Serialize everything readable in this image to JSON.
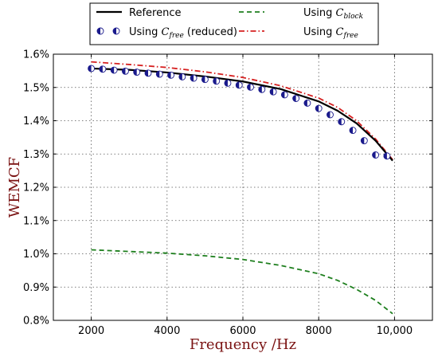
{
  "chart_data": {
    "type": "line",
    "xlabel": "Frequency /Hz",
    "ylabel": "WEMCF",
    "xlim": [
      1000,
      11000
    ],
    "ylim": [
      0.8,
      1.6
    ],
    "x_ticks": [
      2000,
      4000,
      6000,
      8000,
      10000
    ],
    "x_tick_labels": [
      "2000",
      "4000",
      "6000",
      "8000",
      "10,000"
    ],
    "y_ticks": [
      0.8,
      0.9,
      1.0,
      1.1,
      1.2,
      1.3,
      1.4,
      1.5,
      1.6
    ],
    "y_tick_labels": [
      "0.8%",
      "0.9%",
      "1.0%",
      "1.1%",
      "1.2%",
      "1.3%",
      "1.4%",
      "1.5%",
      "1.6%"
    ],
    "grid": true,
    "legend_position": "top (above plot, two columns)",
    "series": [
      {
        "name": "Reference",
        "style": "solid",
        "color": "#000000",
        "x": [
          2000,
          3000,
          4000,
          5000,
          6000,
          7000,
          8000,
          8500,
          9000,
          9500,
          9950
        ],
        "y": [
          1.557,
          1.553,
          1.545,
          1.533,
          1.518,
          1.495,
          1.458,
          1.43,
          1.392,
          1.34,
          1.28
        ]
      },
      {
        "name": "Using C_block",
        "name_text": "Using ",
        "name_math": "C",
        "name_sub": "block",
        "style": "dashed",
        "color": "#1e7f1e",
        "x": [
          2000,
          3000,
          4000,
          5000,
          6000,
          7000,
          8000,
          8500,
          9000,
          9500,
          9950
        ],
        "y": [
          1.012,
          1.007,
          1.002,
          0.994,
          0.983,
          0.965,
          0.94,
          0.92,
          0.893,
          0.86,
          0.82
        ]
      },
      {
        "name": "Using C_free (reduced)",
        "name_text": "Using ",
        "name_math": "C",
        "name_sub": "free",
        "name_suffix": " (reduced)",
        "style": "half-filled-circles",
        "color": "#1a1a8c",
        "x": [
          2000,
          2300,
          2600,
          2900,
          3200,
          3500,
          3800,
          4100,
          4400,
          4700,
          5000,
          5300,
          5600,
          5900,
          6200,
          6500,
          6800,
          7100,
          7400,
          7700,
          8000,
          8300,
          8600,
          8900,
          9200,
          9500,
          9800
        ],
        "y": [
          1.557,
          1.555,
          1.552,
          1.549,
          1.546,
          1.543,
          1.54,
          1.537,
          1.532,
          1.528,
          1.524,
          1.519,
          1.513,
          1.507,
          1.501,
          1.494,
          1.487,
          1.478,
          1.467,
          1.453,
          1.437,
          1.418,
          1.397,
          1.371,
          1.34,
          1.297,
          1.294
        ]
      },
      {
        "name": "Using C_free",
        "name_text": "Using ",
        "name_math": "C",
        "name_sub": "free",
        "style": "dash-dot",
        "color": "#d62020",
        "x": [
          2000,
          3000,
          4000,
          5000,
          6000,
          7000,
          8000,
          8500,
          9000,
          9500,
          9950
        ],
        "y": [
          1.577,
          1.569,
          1.56,
          1.547,
          1.53,
          1.505,
          1.468,
          1.44,
          1.4,
          1.345,
          1.283
        ]
      }
    ]
  }
}
